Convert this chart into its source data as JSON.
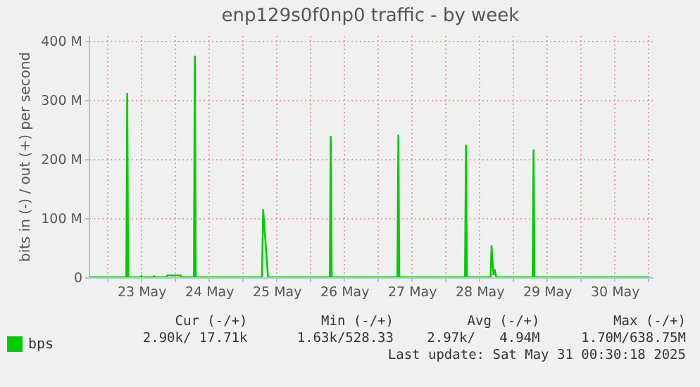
{
  "chart_data": {
    "type": "line",
    "title": "enp129s0f0np0 traffic - by week",
    "ylabel": "bits in (-) / out (+) per second",
    "series": [
      {
        "name": "bps",
        "color": "#00cc00",
        "x": [
          "2025-05-22T17:30",
          "2025-05-23T06:40",
          "2025-05-23T07:00",
          "2025-05-23T07:20",
          "2025-05-23T11:50",
          "2025-05-23T12:00",
          "2025-05-23T12:10",
          "2025-05-23T16:20",
          "2025-05-23T16:30",
          "2025-05-23T16:40",
          "2025-05-23T21:00",
          "2025-05-23T21:10",
          "2025-05-24T02:00",
          "2025-05-24T02:10",
          "2025-05-24T06:40",
          "2025-05-24T07:00",
          "2025-05-24T07:20",
          "2025-05-25T06:50",
          "2025-05-25T07:15",
          "2025-05-25T09:00",
          "2025-05-26T06:55",
          "2025-05-26T07:15",
          "2025-05-26T07:35",
          "2025-05-27T06:55",
          "2025-05-27T07:15",
          "2025-05-27T07:35",
          "2025-05-28T06:55",
          "2025-05-28T07:15",
          "2025-05-28T07:35",
          "2025-05-28T16:00",
          "2025-05-28T16:20",
          "2025-05-28T17:00",
          "2025-05-28T17:30",
          "2025-05-28T18:00",
          "2025-05-29T06:55",
          "2025-05-29T07:15",
          "2025-05-29T07:35",
          "2025-05-31T00:30"
        ],
        "values": [
          0,
          0,
          311,
          0,
          0,
          2,
          0,
          0,
          2,
          0,
          0,
          3,
          3,
          0,
          0,
          374,
          0,
          0,
          114,
          0,
          0,
          238,
          0,
          0,
          240,
          0,
          0,
          223,
          0,
          0,
          53,
          5,
          12,
          0,
          0,
          215,
          0,
          0
        ]
      }
    ],
    "xlim": [
      "2025-05-22T17:20",
      "2025-05-31T01:20"
    ],
    "xticks": [
      {
        "value": "2025-05-23T00:00",
        "label": null
      },
      {
        "value": "2025-05-23T12:00",
        "label": "23 May"
      },
      {
        "value": "2025-05-24T00:00",
        "label": null
      },
      {
        "value": "2025-05-24T12:00",
        "label": "24 May"
      },
      {
        "value": "2025-05-25T00:00",
        "label": null
      },
      {
        "value": "2025-05-25T12:00",
        "label": "25 May"
      },
      {
        "value": "2025-05-26T00:00",
        "label": null
      },
      {
        "value": "2025-05-26T12:00",
        "label": "26 May"
      },
      {
        "value": "2025-05-27T00:00",
        "label": null
      },
      {
        "value": "2025-05-27T12:00",
        "label": "27 May"
      },
      {
        "value": "2025-05-28T00:00",
        "label": null
      },
      {
        "value": "2025-05-28T12:00",
        "label": "28 May"
      },
      {
        "value": "2025-05-29T00:00",
        "label": null
      },
      {
        "value": "2025-05-29T12:00",
        "label": "29 May"
      },
      {
        "value": "2025-05-30T00:00",
        "label": null
      },
      {
        "value": "2025-05-30T12:00",
        "label": "30 May"
      },
      {
        "value": "2025-05-31T00:00",
        "label": null
      }
    ],
    "ylim": [
      0,
      410
    ],
    "yticks": [
      0,
      {
        "value": 100,
        "label": "100 M"
      },
      {
        "value": 200,
        "label": "200 M"
      },
      {
        "value": 300,
        "label": "300 M"
      },
      {
        "value": 400,
        "label": "400 M"
      }
    ],
    "grid": true,
    "legend": "bottom left",
    "marker": "none",
    "line_style": "solid",
    "annotations": [
      "Cur (-/+)",
      "Min (-/+)",
      "Avg (-/+)",
      "Max (-/+)",
      "2.90k/ 17.71k",
      "1.63k/528.33",
      "2.97k/   4.94M",
      "1.70M/638.75M",
      "Last update: Sat May 31 00:30:18 2025"
    ]
  }
}
